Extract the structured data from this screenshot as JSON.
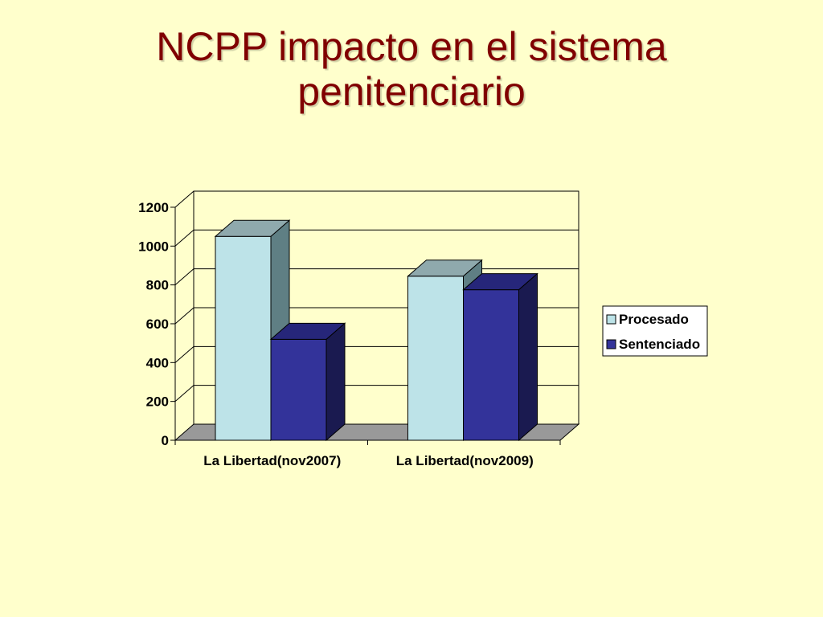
{
  "slide": {
    "title_line1": "NCPP impacto en el sistema",
    "title_line2": "penitenciario"
  },
  "chart_data": {
    "type": "bar",
    "style": "3d-clustered-column",
    "categories": [
      "La Libertad(nov2007)",
      "La Libertad(nov2009)"
    ],
    "series": [
      {
        "name": "Procesado",
        "values": [
          1050,
          845
        ],
        "color": "#bde3e8",
        "side_color": "#5f7f84",
        "top_color": "#8fa9ad"
      },
      {
        "name": "Sentenciado",
        "values": [
          520,
          775
        ],
        "color": "#33339a",
        "side_color": "#1a1a50",
        "top_color": "#26267a"
      }
    ],
    "y_ticks": [
      0,
      200,
      400,
      600,
      800,
      1000,
      1200
    ],
    "ylim": [
      0,
      1200
    ],
    "grid": true,
    "legend_position": "right",
    "colors": {
      "floor": "#999999",
      "wall": "#ffffcc",
      "grid": "#000000"
    }
  }
}
